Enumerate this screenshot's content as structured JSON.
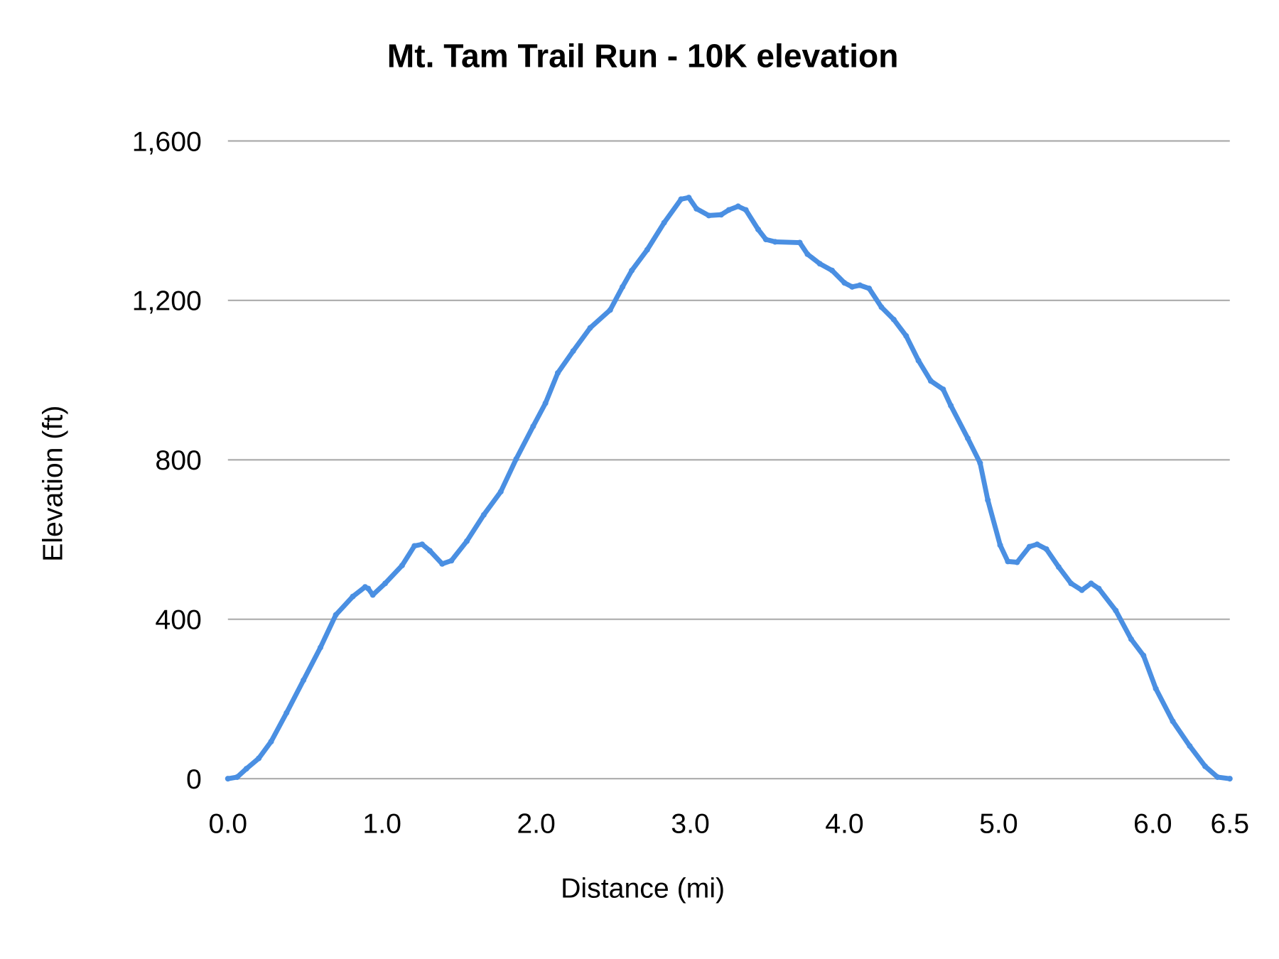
{
  "chart_data": {
    "type": "line",
    "title": "Mt. Tam Trail Run - 10K elevation",
    "xlabel": "Distance (mi)",
    "ylabel": "Elevation (ft)",
    "xlim": [
      0,
      6.5
    ],
    "ylim": [
      0,
      1600
    ],
    "x_ticks": [
      "0.0",
      "1.0",
      "2.0",
      "3.0",
      "4.0",
      "5.0",
      "6.0",
      "6.5"
    ],
    "x_tick_values": [
      0,
      1,
      2,
      3,
      4,
      5,
      6,
      6.5
    ],
    "y_ticks": [
      "0",
      "400",
      "800",
      "1,200",
      "1,600"
    ],
    "y_tick_values": [
      0,
      400,
      800,
      1200,
      1600
    ],
    "grid": "horizontal",
    "legend": "none",
    "color": "#4a8fe2",
    "series": [
      {
        "x": [
          0,
          0.06,
          0.12,
          0.2,
          0.28,
          0.38,
          0.49,
          0.6,
          0.7,
          0.81,
          0.89,
          0.91,
          0.94,
          1.02,
          1.13,
          1.21,
          1.26,
          1.31,
          1.39,
          1.45,
          1.55,
          1.66,
          1.77,
          1.87,
          1.98,
          2.06,
          2.14,
          2.24,
          2.35,
          2.48,
          2.56,
          2.62,
          2.72,
          2.83,
          2.94,
          2.99,
          3.04,
          3.12,
          3.2,
          3.25,
          3.31,
          3.36,
          3.44,
          3.49,
          3.55,
          3.71,
          3.76,
          3.84,
          3.92,
          4.0,
          4.05,
          4.1,
          4.16,
          4.24,
          4.32,
          4.4,
          4.48,
          4.56,
          4.64,
          4.69,
          4.8,
          4.88,
          4.93,
          5.01,
          5.06,
          5.12,
          5.2,
          5.25,
          5.31,
          5.39,
          5.47,
          5.54,
          5.6,
          5.65,
          5.76,
          5.86,
          5.94,
          6.02,
          6.13,
          6.24,
          6.34,
          6.42,
          6.5
        ],
        "y": [
          0,
          4,
          25,
          51,
          93,
          165,
          247,
          329,
          411,
          457,
          481,
          477,
          461,
          490,
          535,
          584,
          588,
          572,
          539,
          547,
          596,
          662,
          720,
          802,
          884,
          942,
          1018,
          1073,
          1131,
          1176,
          1234,
          1275,
          1327,
          1395,
          1454,
          1458,
          1430,
          1413,
          1415,
          1427,
          1436,
          1427,
          1378,
          1353,
          1347,
          1345,
          1316,
          1292,
          1275,
          1244,
          1234,
          1238,
          1230,
          1183,
          1152,
          1111,
          1049,
          998,
          977,
          936,
          854,
          792,
          699,
          586,
          545,
          543,
          582,
          588,
          576,
          531,
          490,
          473,
          490,
          477,
          422,
          350,
          309,
          226,
          144,
          82,
          31,
          4,
          0
        ]
      }
    ]
  }
}
